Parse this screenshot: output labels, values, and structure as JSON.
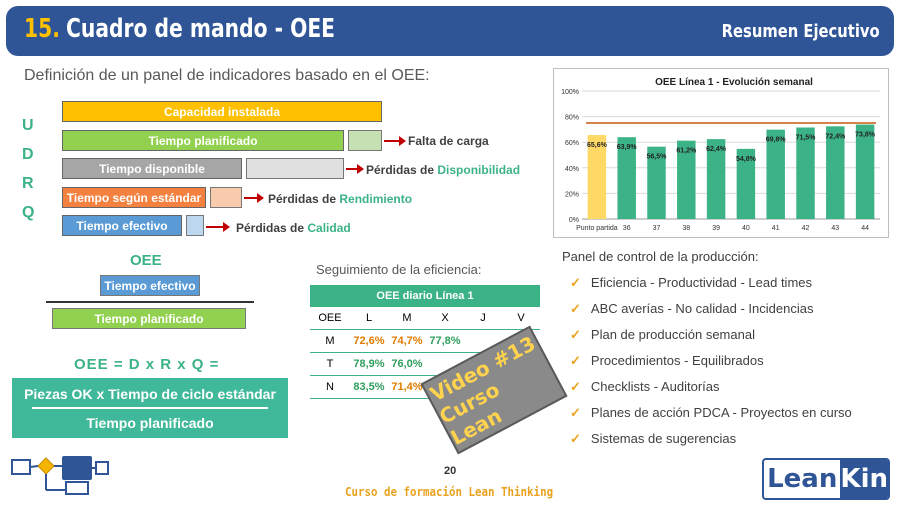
{
  "header": {
    "number": "15.",
    "title": "Cuadro de mando - OEE",
    "right": "Resumen Ejecutivo"
  },
  "subtitle": "Definición de un panel de indicadores basado en el OEE:",
  "udrq": [
    "U",
    "D",
    "R",
    "Q"
  ],
  "bars": {
    "capacidad": "Capacidad instalada",
    "planificado": "Tiempo planificado",
    "disponible": "Tiempo disponible",
    "estandar": "Tiempo según estándar",
    "efectivo": "Tiempo efectivo"
  },
  "losses": {
    "carga": "Falta de carga",
    "disp_prefix": "Pérdidas de ",
    "disp_word": "Disponibilidad",
    "rend_prefix": "Pérdidas de ",
    "rend_word": "Rendimiento",
    "cal_prefix": "Pérdidas de ",
    "cal_word": "Calidad"
  },
  "colors": {
    "capacidad": "#ffc000",
    "planificado": "#92d050",
    "disponible": "#a6a6a6",
    "estandar": "#f4813f",
    "efectivo": "#5b9bd5",
    "accent": "#3cb386",
    "header": "#2f5597"
  },
  "oee": {
    "title": "OEE",
    "numerator": "Tiempo efectivo",
    "denominator": "Tiempo planificado",
    "formula": "OEE = D x R x Q =",
    "big_numerator": "Piezas OK  x  Tiempo de ciclo estándar",
    "big_denominator": "Tiempo planificado"
  },
  "efficiency": {
    "title": "Seguimiento de la eficiencia:",
    "table_title": "OEE diario Línea 1",
    "columns": [
      "OEE",
      "L",
      "M",
      "X",
      "J",
      "V"
    ],
    "rows": [
      {
        "label": "M",
        "values": [
          "72,6%",
          "74,7%",
          "77,8%",
          "",
          ""
        ]
      },
      {
        "label": "T",
        "values": [
          "78,9%",
          "76,0%",
          "",
          "",
          ""
        ]
      },
      {
        "label": "N",
        "values": [
          "83,5%",
          "71,4%",
          "",
          "",
          ""
        ]
      }
    ]
  },
  "stamp": {
    "line1": "Video #13",
    "line2": "Curso Lean"
  },
  "chart_data": {
    "type": "bar",
    "title": "OEE Línea 1 - Evolución semanal",
    "categories": [
      "Punto partida",
      "36",
      "37",
      "38",
      "39",
      "40",
      "41",
      "42",
      "43",
      "44"
    ],
    "values": [
      65.6,
      63.9,
      56.5,
      61.2,
      62.4,
      54.8,
      69.8,
      71.5,
      72.4,
      73.8
    ],
    "data_labels": [
      "65,6%",
      "63,9%",
      "56,5%",
      "61,2%",
      "62,4%",
      "54,8%",
      "69,8%",
      "71,5%",
      "72,4%",
      "73,8%"
    ],
    "bar_colors": [
      "#ffd966",
      "#3cb386",
      "#3cb386",
      "#3cb386",
      "#3cb386",
      "#3cb386",
      "#3cb386",
      "#3cb386",
      "#3cb386",
      "#3cb386"
    ],
    "target_line": 75,
    "target_color": "#c55a11",
    "yticks": [
      "0%",
      "20%",
      "40%",
      "60%",
      "80%",
      "100%"
    ],
    "ylim": [
      0,
      100
    ],
    "grid": true
  },
  "panel": {
    "title": "Panel de control de la producción:",
    "items": [
      "Eficiencia - Productividad - Lead times",
      "ABC averías - No calidad - Incidencias",
      "Plan de producción semanal",
      "Procedimientos - Equilibrados",
      "Checklists - Auditorías",
      "Planes de acción PDCA - Proyectos en curso",
      "Sistemas de sugerencias"
    ]
  },
  "footer": {
    "page": "20",
    "course": "Curso de formación Lean Thinking",
    "logo_left": "Lean",
    "logo_right": "Kin"
  }
}
